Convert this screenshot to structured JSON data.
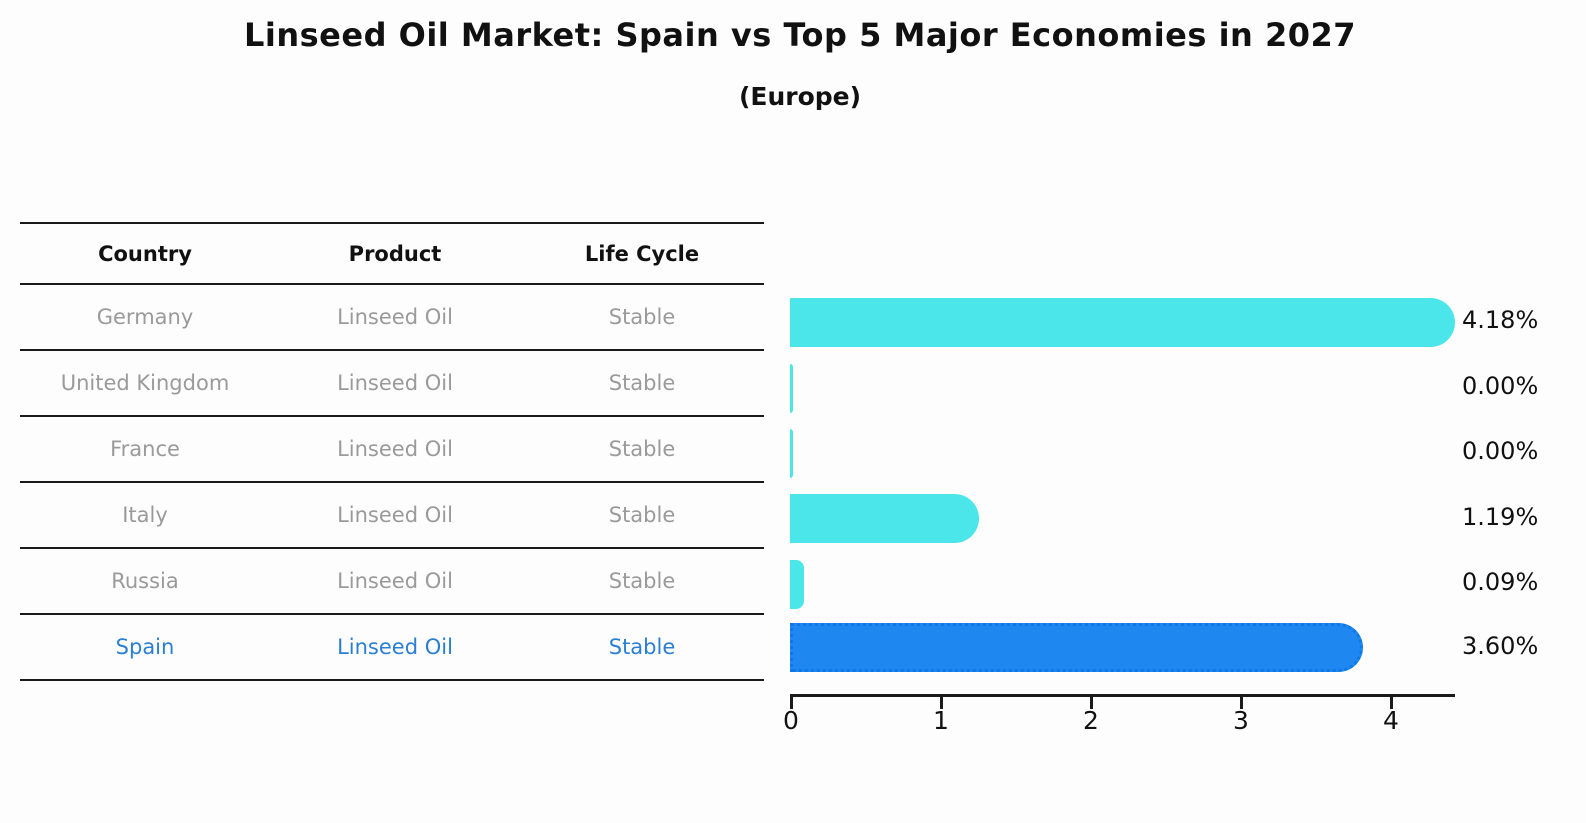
{
  "title": "Linseed Oil Market: Spain vs Top 5 Major Economies in 2027",
  "subtitle": "(Europe)",
  "table": {
    "headers": [
      "Country",
      "Product",
      "Life Cycle"
    ],
    "rows": [
      {
        "country": "Germany",
        "product": "Linseed Oil",
        "life_cycle": "Stable"
      },
      {
        "country": "United Kingdom",
        "product": "Linseed Oil",
        "life_cycle": "Stable"
      },
      {
        "country": "France",
        "product": "Linseed Oil",
        "life_cycle": "Stable"
      },
      {
        "country": "Italy",
        "product": "Linseed Oil",
        "life_cycle": "Stable"
      },
      {
        "country": "Russia",
        "product": "Linseed Oil",
        "life_cycle": "Stable"
      },
      {
        "country": "Spain",
        "product": "Linseed Oil",
        "life_cycle": "Stable"
      }
    ]
  },
  "chart_data": {
    "type": "bar",
    "orientation": "horizontal",
    "title": "Linseed Oil Market: Spain vs Top 5 Major Economies in 2027",
    "subtitle": "(Europe)",
    "categories": [
      "Germany",
      "United Kingdom",
      "France",
      "Italy",
      "Russia",
      "Spain"
    ],
    "values": [
      4.18,
      0.0,
      0.0,
      1.19,
      0.09,
      3.6
    ],
    "value_labels": [
      "4.18%",
      "0.00%",
      "0.00%",
      "1.19%",
      "0.09%",
      "3.60%"
    ],
    "unit": "%",
    "x_ticks": [
      "0",
      "1",
      "2",
      "3",
      "4"
    ],
    "xlim": [
      0,
      4.4
    ],
    "grid": false,
    "legend": false,
    "bar_color": "#4be6e9",
    "highlight_index": 5,
    "highlight_bar_color": "#1e87f0",
    "highlight_border_color": "#0f78e8",
    "highlight_text_color": "#2b7fd3",
    "row_text_color": "#9a9a9a"
  }
}
